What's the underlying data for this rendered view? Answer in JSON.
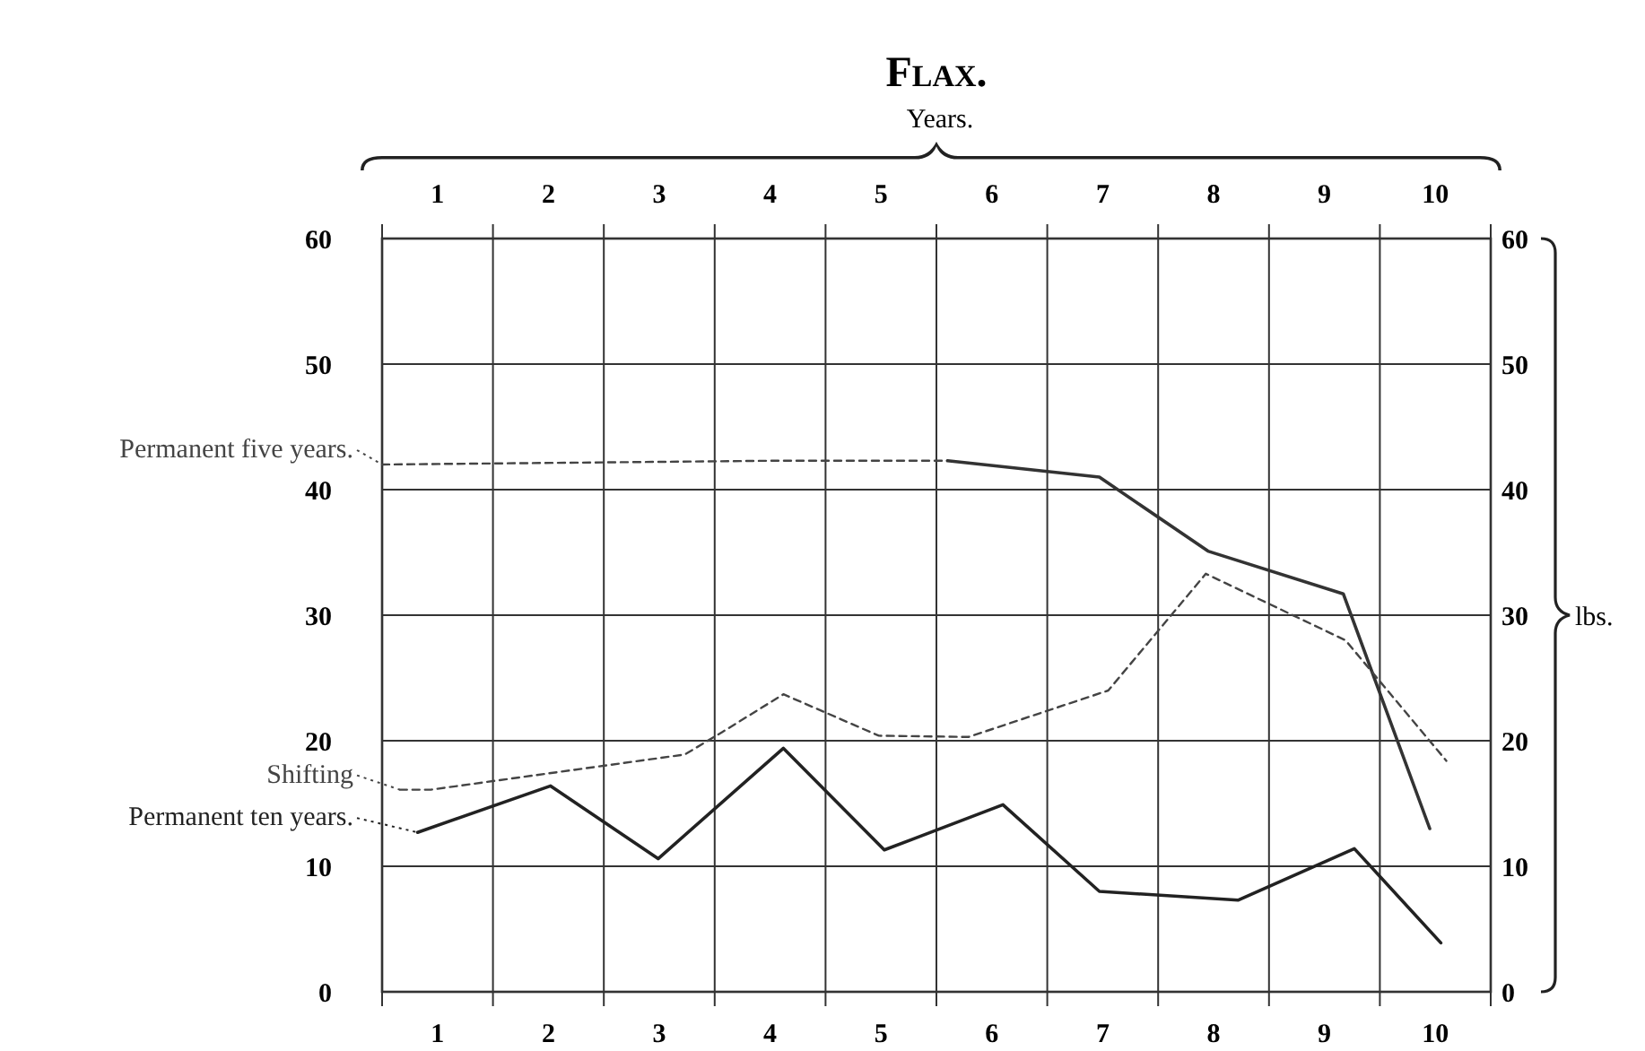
{
  "chart_data": {
    "type": "line",
    "title": "Flax.",
    "x2label": "Years.",
    "y2label": "lbs.",
    "xlim": [
      0.5,
      10.5
    ],
    "xticks": [
      1,
      2,
      3,
      4,
      5,
      6,
      7,
      8,
      9,
      10
    ],
    "x2lim": [
      0.5,
      10.5
    ],
    "x2ticks": [
      1,
      2,
      3,
      4,
      5,
      6,
      7,
      8,
      9,
      10
    ],
    "ylim": [
      0,
      60
    ],
    "yticks": [
      0,
      10,
      20,
      30,
      40,
      50,
      60
    ],
    "y2lim": [
      0,
      60
    ],
    "y2ticks": [
      0,
      10,
      20,
      30,
      40,
      50,
      60
    ],
    "grid": true,
    "legend": "left",
    "marker": "none",
    "series": [
      {
        "name": "Permanent five years.",
        "color": "#444444",
        "line_style": "dashed",
        "x": [
          0.5,
          4.0,
          5.6
        ],
        "values": [
          42,
          42.3,
          42.3
        ]
      },
      {
        "color": "#333333",
        "line_style": "solid",
        "x": [
          5.6,
          6.97,
          7.95,
          9.17,
          9.95
        ],
        "values": [
          42.3,
          41,
          35.1,
          31.7,
          13
        ]
      },
      {
        "name": "Shifting",
        "color": "#444444",
        "line_style": "dashed",
        "x": [
          0.66,
          0.94,
          3.23,
          3.57,
          4.12,
          4.98,
          5.79,
          7.05,
          7.93,
          9.19,
          10.1
        ],
        "values": [
          16.1,
          16.1,
          18.9,
          20.7,
          23.7,
          20.4,
          20.3,
          24,
          33.3,
          28,
          18.4
        ]
      },
      {
        "name": "Permanent ten years.",
        "color": "#222222",
        "line_style": "solid",
        "x": [
          0.82,
          2.02,
          2.99,
          4.12,
          5.03,
          6.1,
          6.97,
          8.22,
          9.27,
          10.05
        ],
        "values": [
          12.7,
          16.4,
          10.6,
          19.4,
          11.3,
          14.9,
          8,
          7.3,
          11.4,
          3.9
        ]
      }
    ]
  }
}
